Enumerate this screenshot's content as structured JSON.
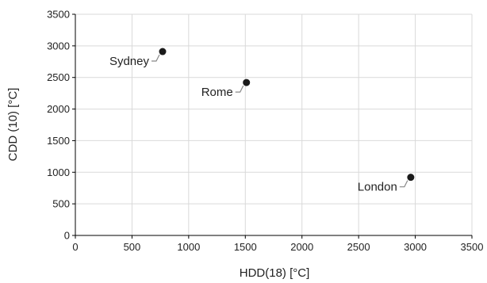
{
  "chart_data": {
    "type": "scatter",
    "xlabel": "HDD(18)  [°C]",
    "ylabel": "CDD (10)  [°C]",
    "xlim": [
      0,
      3500
    ],
    "ylim": [
      0,
      3500
    ],
    "xticks": [
      0,
      500,
      1000,
      1500,
      2000,
      2500,
      3000,
      3500
    ],
    "yticks": [
      0,
      500,
      1000,
      1500,
      2000,
      2500,
      3000,
      3500
    ],
    "grid": true,
    "points": [
      {
        "label": "Sydney",
        "x": 770,
        "y": 2910,
        "label_side": "left"
      },
      {
        "label": "Rome",
        "x": 1510,
        "y": 2420,
        "label_side": "left"
      },
      {
        "label": "London",
        "x": 2960,
        "y": 920,
        "label_side": "left"
      }
    ],
    "colors": {
      "marker": "#1a1a1a",
      "grid": "#d9d9d9",
      "axis": "#000000",
      "leader": "#888888"
    }
  }
}
